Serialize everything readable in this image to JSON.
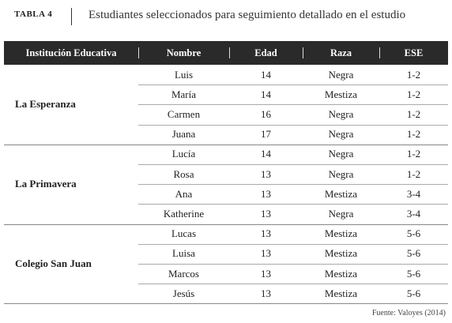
{
  "header": {
    "label": "TABLA 4",
    "title": "Estudiantes seleccionados para seguimiento detallado en el estudio"
  },
  "table": {
    "columns": [
      "Institución Educativa",
      "Nombre",
      "Edad",
      "Raza",
      "ESE"
    ],
    "groups": [
      {
        "institution": "La Esperanza",
        "rows": [
          [
            "Luis",
            "14",
            "Negra",
            "1-2"
          ],
          [
            "María",
            "14",
            "Mestiza",
            "1-2"
          ],
          [
            "Carmen",
            "16",
            "Negra",
            "1-2"
          ],
          [
            "Juana",
            "17",
            "Negra",
            "1-2"
          ]
        ]
      },
      {
        "institution": "La Primavera",
        "rows": [
          [
            "Lucía",
            "14",
            "Negra",
            "1-2"
          ],
          [
            "Rosa",
            "13",
            "Negra",
            "1-2"
          ],
          [
            "Ana",
            "13",
            "Mestiza",
            "3-4"
          ],
          [
            "Katherine",
            "13",
            "Negra",
            "3-4"
          ]
        ]
      },
      {
        "institution": "Colegio San Juan",
        "rows": [
          [
            "Lucas",
            "13",
            "Mestiza",
            "5-6"
          ],
          [
            "Luisa",
            "13",
            "Mestiza",
            "5-6"
          ],
          [
            "Marcos",
            "13",
            "Mestiza",
            "5-6"
          ],
          [
            "Jesús",
            "13",
            "Mestiza",
            "5-6"
          ]
        ]
      }
    ]
  },
  "source": "Fuente: Valoyes (2014)"
}
